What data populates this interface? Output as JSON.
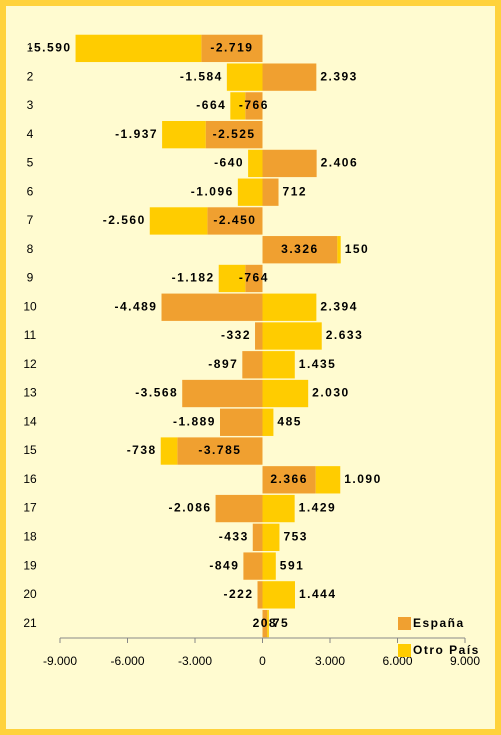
{
  "chart_data": {
    "type": "bar",
    "orientation": "horizontal",
    "stacked": true,
    "categories": [
      "1",
      "2",
      "3",
      "4",
      "5",
      "6",
      "7",
      "8",
      "9",
      "10",
      "11",
      "12",
      "13",
      "14",
      "15",
      "16",
      "17",
      "18",
      "19",
      "20",
      "21"
    ],
    "series": [
      {
        "name": "España",
        "color": "#f0a030",
        "label_color": "#8b1a1a",
        "values": [
          -2719,
          2393,
          -766,
          -2525,
          2406,
          712,
          -2450,
          3326,
          -764,
          -4489,
          -332,
          -897,
          -3568,
          -1889,
          -3785,
          2366,
          -2086,
          -433,
          -849,
          -222,
          208
        ],
        "value_labels": [
          "-2.719",
          "2.393",
          "-766",
          "-2.525",
          "2.406",
          "712",
          "-2.450",
          "3.326",
          "-764",
          "-4.489",
          "-332",
          "-897",
          "-3.568",
          "-1.889",
          "-3.785",
          "2.366",
          "-2.086",
          "-433",
          "-849",
          "-222",
          "208"
        ]
      },
      {
        "name": "Otro País",
        "color": "#ffcc00",
        "label_color": "#f0a030",
        "values": [
          -5590,
          -1584,
          -664,
          -1937,
          -640,
          -1096,
          -2560,
          150,
          -1182,
          2394,
          2633,
          1435,
          2030,
          485,
          -738,
          1090,
          1429,
          753,
          591,
          1444,
          75
        ],
        "value_labels": [
          "-5.590",
          "-1.584",
          "-664",
          "-1.937",
          "-640",
          "-1.096",
          "-2.560",
          "150",
          "-1.182",
          "2.394",
          "2.633",
          "1.435",
          "2.030",
          "485",
          "-738",
          "1.090",
          "1.429",
          "753",
          "591",
          "1.444",
          "75"
        ]
      }
    ],
    "xlim": [
      -9000,
      9000
    ],
    "xticks": [
      {
        "value": -9000,
        "label": "-9.000"
      },
      {
        "value": -6000,
        "label": "-6.000"
      },
      {
        "value": -3000,
        "label": "-3.000"
      },
      0,
      {
        "value": 3000,
        "label": "3.000"
      },
      {
        "value": 6000,
        "label": "6.000"
      },
      {
        "value": 9000,
        "label": "9.000"
      }
    ],
    "grid": false,
    "legend": "lower right"
  }
}
